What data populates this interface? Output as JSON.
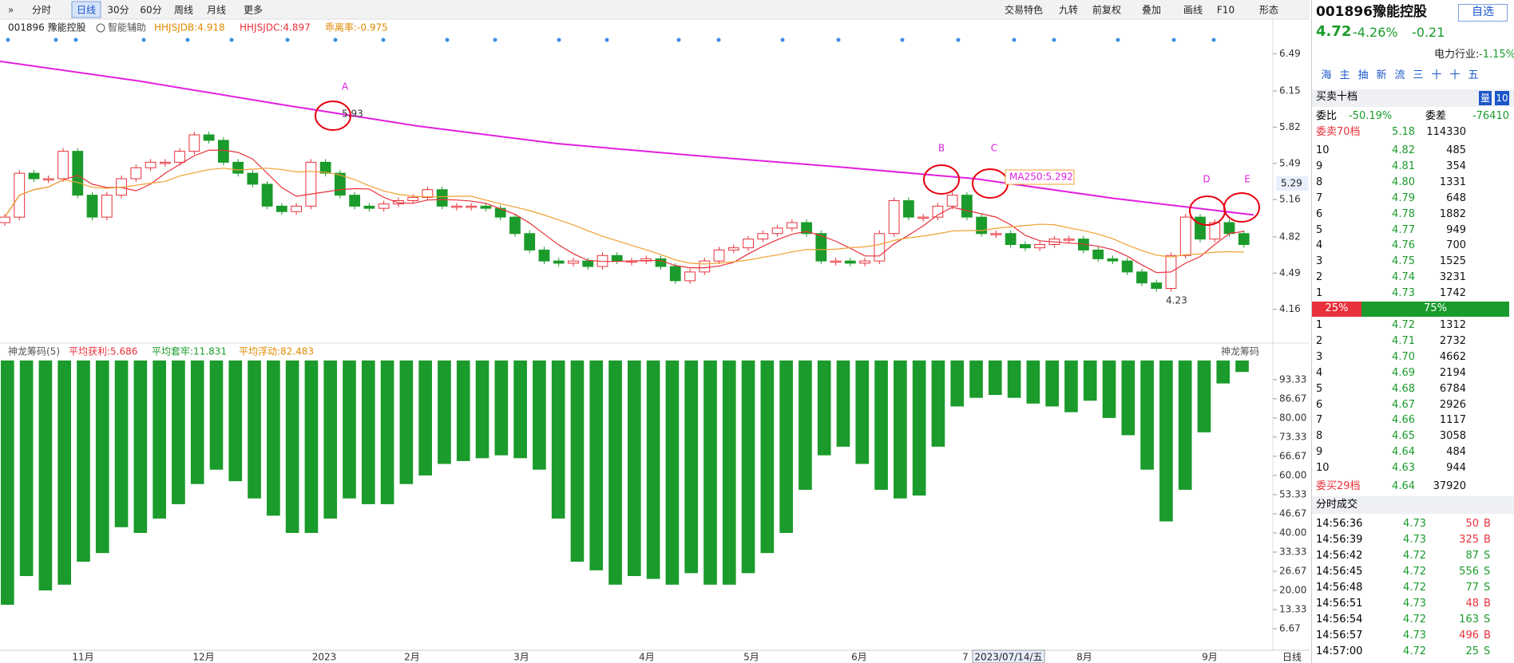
{
  "toolbar": {
    "left": [
      "分时",
      "日线",
      "30分",
      "60分",
      "周线",
      "月线",
      "更多"
    ],
    "right": [
      "交易特色",
      "九转",
      "前复权",
      "叠加",
      "画线",
      "F10",
      "形态"
    ]
  },
  "indicators": {
    "symbol": "001896 豫能控股",
    "assist": "智能辅助",
    "items": [
      {
        "text": "HHJSJDB:4.918",
        "color": "#e08a00"
      },
      {
        "text": "HHJSJDC:4.897",
        "color": "#e8313b"
      },
      {
        "text": "乖离率:-0.975",
        "color": "#e08a00"
      }
    ]
  },
  "main_chart": {
    "type": "candlestick",
    "ylim": [
      4.07,
      6.63
    ],
    "yticks": [
      6.49,
      6.15,
      5.82,
      5.49,
      5.16,
      4.82,
      4.49,
      4.16
    ],
    "closes": [
      5.0,
      5.4,
      5.35,
      5.35,
      5.6,
      5.2,
      5.0,
      5.2,
      5.35,
      5.45,
      5.5,
      5.5,
      5.6,
      5.75,
      5.7,
      5.5,
      5.4,
      5.3,
      5.1,
      5.05,
      5.1,
      5.5,
      5.4,
      5.2,
      5.1,
      5.08,
      5.12,
      5.15,
      5.18,
      5.25,
      5.1,
      5.1,
      5.1,
      5.08,
      5.0,
      4.85,
      4.7,
      4.6,
      4.58,
      4.6,
      4.55,
      4.65,
      4.6,
      4.6,
      4.62,
      4.55,
      4.42,
      4.5,
      4.6,
      4.7,
      4.72,
      4.8,
      4.85,
      4.9,
      4.95,
      4.85,
      4.6,
      4.6,
      4.58,
      4.6,
      4.85,
      5.15,
      5.0,
      5.0,
      5.1,
      5.2,
      5.0,
      4.85,
      4.85,
      4.75,
      4.72,
      4.75,
      4.8,
      4.8,
      4.7,
      4.62,
      4.6,
      4.5,
      4.4,
      4.35,
      4.65,
      5.0,
      4.8,
      4.95,
      4.85,
      4.75
    ],
    "ma250": [
      6.42,
      6.24,
      6.03,
      5.83,
      5.67,
      5.56,
      5.46,
      5.35,
      5.17,
      5.02
    ],
    "ma250_color": "#e020e0",
    "up_color": "#e8313b",
    "down_color": "#1a9b2b",
    "annotations": [
      "A",
      "B",
      "C",
      "D",
      "E"
    ],
    "high_label": "5.93",
    "low_label": "4.23",
    "ma250_label": "MA250:5.292",
    "last_price_tag": "5.29",
    "months": [
      "11月",
      "12月",
      "2023",
      "2月",
      "3月",
      "4月",
      "5月",
      "6月",
      "7",
      "8月",
      "9月"
    ],
    "date_cursor": "2023/07/14/五",
    "period": "日线"
  },
  "lower_chart": {
    "type": "bar",
    "title": "神龙筹码(5)",
    "right_title": "神龙筹码",
    "color": "#1a9b2b",
    "stats": [
      {
        "text": "平均获利:5.686",
        "color": "#e8313b"
      },
      {
        "text": "平均套牢:11.831",
        "color": "#1a9b2b"
      },
      {
        "text": "平均浮动:82.483",
        "color": "#e08a00"
      }
    ],
    "ylim": [
      0.3,
      100.5
    ],
    "yticks": [
      93.33,
      86.67,
      {
        "value": 80,
        "label": "80.00"
      },
      73.33,
      66.67,
      {
        "value": 60,
        "label": "60.00"
      },
      53.33,
      46.67,
      {
        "value": 40,
        "label": "40.00"
      },
      33.33,
      26.67,
      {
        "value": 20,
        "label": "20.00"
      },
      13.33,
      6.67
    ],
    "values": [
      15,
      25,
      20,
      22,
      30,
      33,
      42,
      40,
      45,
      50,
      57,
      62,
      58,
      52,
      46,
      40,
      40,
      45,
      52,
      50,
      50,
      57,
      60,
      64,
      65,
      66,
      67,
      66,
      62,
      45,
      30,
      27,
      22,
      25,
      24,
      22,
      26,
      22,
      22,
      26,
      33,
      40,
      55,
      67,
      70,
      64,
      55,
      52,
      53,
      70,
      84,
      87,
      88,
      87,
      85,
      84,
      82,
      86,
      80,
      74,
      62,
      44,
      55,
      75,
      92,
      96
    ]
  },
  "quote": {
    "title": "001896豫能控股",
    "watch": "自选",
    "price": "4.72",
    "pct": "-4.26%",
    "chg": "-0.21",
    "industry": "电力行业:",
    "industry_pct": "-1.15%",
    "tabs": [
      "海",
      "主",
      "抽",
      "新",
      "流",
      "三",
      "十",
      "十",
      "五"
    ],
    "book_title": "买卖十档",
    "book_mode": "量",
    "book_depth": "10",
    "ratio_label": "委比",
    "ratio": "-50.19%",
    "diff_label": "委差",
    "diff": "-76410",
    "sell_total": [
      "委卖70档",
      "5.18",
      "114330"
    ],
    "sells": [
      [
        "10",
        "4.82",
        "485"
      ],
      [
        "9",
        "4.81",
        "354"
      ],
      [
        "8",
        "4.80",
        "1331"
      ],
      [
        "7",
        "4.79",
        "648"
      ],
      [
        "6",
        "4.78",
        "1882"
      ],
      [
        "5",
        "4.77",
        "949"
      ],
      [
        "4",
        "4.76",
        "700"
      ],
      [
        "3",
        "4.75",
        "1525"
      ],
      [
        "2",
        "4.74",
        "3231"
      ],
      [
        "1",
        "4.73",
        "1742"
      ]
    ],
    "split": [
      "25%",
      "75%"
    ],
    "buys": [
      [
        "1",
        "4.72",
        "1312"
      ],
      [
        "2",
        "4.71",
        "2732"
      ],
      [
        "3",
        "4.70",
        "4662"
      ],
      [
        "4",
        "4.69",
        "2194"
      ],
      [
        "5",
        "4.68",
        "6784"
      ],
      [
        "6",
        "4.67",
        "2926"
      ],
      [
        "7",
        "4.66",
        "1117"
      ],
      [
        "8",
        "4.65",
        "3058"
      ],
      [
        "9",
        "4.64",
        "484"
      ],
      [
        "10",
        "4.63",
        "944"
      ]
    ],
    "buy_total": [
      "委买29档",
      "4.64",
      "37920"
    ],
    "trades_title": "分时成交",
    "trades": [
      [
        "14:56:36",
        "4.73",
        "50",
        "B"
      ],
      [
        "14:56:39",
        "4.73",
        "325",
        "B"
      ],
      [
        "14:56:42",
        "4.72",
        "87",
        "S"
      ],
      [
        "14:56:45",
        "4.72",
        "556",
        "S"
      ],
      [
        "14:56:48",
        "4.72",
        "77",
        "S"
      ],
      [
        "14:56:51",
        "4.73",
        "48",
        "B"
      ],
      [
        "14:56:54",
        "4.72",
        "163",
        "S"
      ],
      [
        "14:56:57",
        "4.73",
        "496",
        "B"
      ],
      [
        "14:57:00",
        "4.72",
        "25",
        "S"
      ]
    ]
  }
}
